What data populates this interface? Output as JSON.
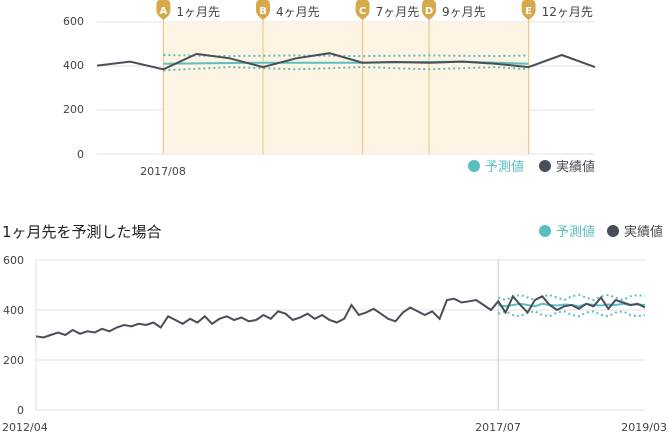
{
  "colors": {
    "actual": "#4a4e58",
    "forecast": "#5bbfc0",
    "band": "#5bbfc0",
    "highlight_bg": "#fdf4e3",
    "marker": "#d6a94a",
    "marker_line": "#f0c98a",
    "grid": "#e2e2e2"
  },
  "chart_data": [
    {
      "type": "line",
      "ylim": [
        0,
        600
      ],
      "y_ticks": [
        "0",
        "200",
        "400",
        "600"
      ],
      "x_tick_label": "2017/08",
      "legend": [
        "予測値",
        "実績値"
      ],
      "legend_placement": "bottom-right",
      "markers": [
        {
          "letter": "A",
          "label": "1ヶ月先",
          "x": 2
        },
        {
          "letter": "B",
          "label": "4ヶ月先",
          "x": 5
        },
        {
          "letter": "C",
          "label": "7ヶ月先",
          "x": 8
        },
        {
          "letter": "D",
          "label": "9ヶ月先",
          "x": 10
        },
        {
          "letter": "E",
          "label": "12ヶ月先",
          "x": 13
        }
      ],
      "highlight_range": [
        2,
        13
      ],
      "actual": {
        "x": [
          0,
          1,
          2,
          3,
          4,
          5,
          6,
          7,
          8,
          9,
          10,
          11,
          12,
          13,
          14,
          15
        ],
        "values": [
          402,
          420,
          385,
          455,
          435,
          395,
          435,
          458,
          415,
          418,
          415,
          420,
          410,
          395,
          450,
          395
        ]
      },
      "forecast": {
        "x": [
          2,
          5,
          8,
          11,
          13
        ],
        "values": [
          410,
          415,
          415,
          420,
          410
        ]
      },
      "band_upper": {
        "x": [
          2,
          4,
          6,
          8,
          10,
          12,
          13
        ],
        "values": [
          450,
          445,
          448,
          445,
          448,
          445,
          448
        ]
      },
      "band_lower": {
        "x": [
          2,
          4,
          6,
          8,
          10,
          12,
          13
        ],
        "values": [
          380,
          395,
          385,
          395,
          385,
          395,
          385
        ]
      }
    },
    {
      "type": "line",
      "title": "1ヶ月先を予測した場合",
      "ylim": [
        0,
        600
      ],
      "y_ticks": [
        "0",
        "200",
        "400",
        "600"
      ],
      "x_tick_labels": [
        "2012/04",
        "2017/07",
        "2019/03"
      ],
      "legend": [
        "予測値",
        "実績値"
      ],
      "legend_placement": "top-right",
      "forecast_start_index": 63,
      "actual_values": [
        295,
        290,
        300,
        310,
        300,
        320,
        305,
        315,
        310,
        325,
        315,
        330,
        340,
        335,
        345,
        340,
        350,
        330,
        375,
        360,
        345,
        365,
        350,
        375,
        345,
        365,
        375,
        360,
        370,
        355,
        360,
        380,
        365,
        395,
        385,
        360,
        370,
        385,
        365,
        380,
        360,
        350,
        365,
        420,
        380,
        390,
        405,
        385,
        365,
        355,
        390,
        410,
        395,
        380,
        395,
        365,
        440,
        445,
        430,
        435,
        440,
        420,
        400,
        435,
        390,
        455,
        420,
        390,
        440,
        455,
        420,
        400,
        415,
        420,
        405,
        425,
        415,
        450,
        405,
        440,
        430,
        420,
        425,
        410
      ],
      "forecast_values": [
        420,
        415,
        420,
        425,
        420,
        415,
        425,
        420,
        418,
        422,
        420,
        415,
        425,
        420,
        418,
        422,
        420,
        425,
        420,
        422,
        420
      ],
      "band_upper": [
        450,
        440,
        455,
        460,
        450,
        440,
        455,
        460,
        450,
        440,
        455,
        460,
        450,
        440,
        455,
        460,
        450,
        440,
        455,
        460,
        455
      ],
      "band_lower": [
        385,
        395,
        380,
        375,
        390,
        395,
        380,
        375,
        390,
        395,
        380,
        375,
        390,
        395,
        380,
        375,
        390,
        395,
        380,
        375,
        380
      ]
    }
  ]
}
